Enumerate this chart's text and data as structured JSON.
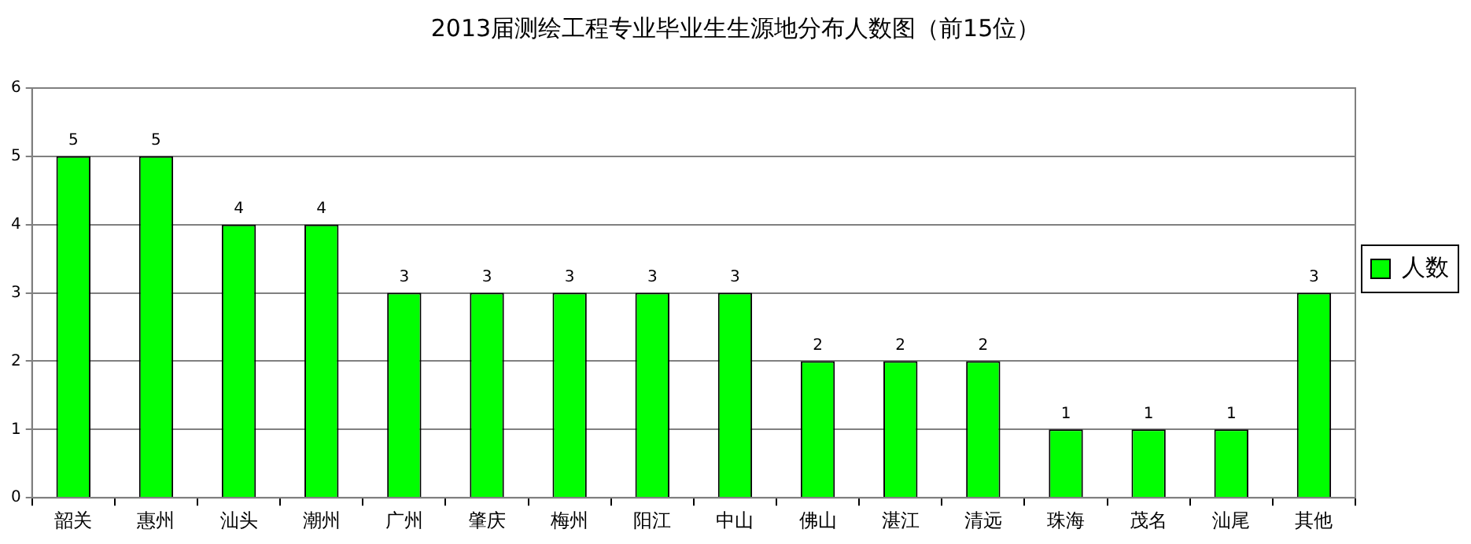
{
  "chart_data": {
    "type": "bar",
    "title": "2013届测绘工程专业毕业生生源地分布人数图（前15位）",
    "categories": [
      "韶关",
      "惠州",
      "汕头",
      "潮州",
      "广州",
      "肇庆",
      "梅州",
      "阳江",
      "中山",
      "佛山",
      "湛江",
      "清远",
      "珠海",
      "茂名",
      "汕尾",
      "其他"
    ],
    "series": [
      {
        "name": "人数",
        "color": "#00ff00",
        "values": [
          5,
          5,
          4,
          4,
          3,
          3,
          3,
          3,
          3,
          2,
          2,
          2,
          1,
          1,
          1,
          3
        ]
      }
    ],
    "ylim": [
      0,
      6
    ],
    "yticks": [
      0,
      1,
      2,
      3,
      4,
      5,
      6
    ],
    "grid": "y",
    "legend": "right",
    "data_labels": true
  }
}
